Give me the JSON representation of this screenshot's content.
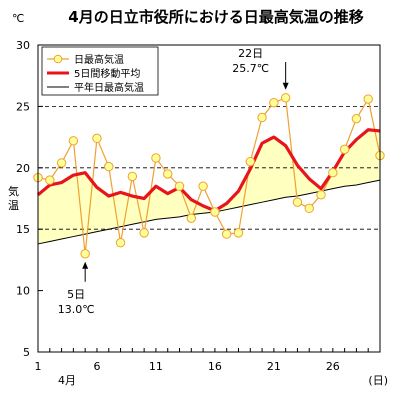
{
  "chart_data": {
    "type": "line",
    "title": "4月の日立市役所における日最高気温の推移",
    "unit_label": "℃",
    "ylabel": "気温",
    "x_unit": "(日)",
    "month_label": "4月",
    "x": [
      1,
      2,
      3,
      4,
      5,
      6,
      7,
      8,
      9,
      10,
      11,
      12,
      13,
      14,
      15,
      16,
      17,
      18,
      19,
      20,
      21,
      22,
      23,
      24,
      25,
      26,
      27,
      28,
      29,
      30
    ],
    "xlim": [
      1,
      30
    ],
    "ylim": [
      5,
      30
    ],
    "x_ticks": [
      1,
      6,
      11,
      16,
      21,
      26
    ],
    "y_ticks": [
      5,
      10,
      15,
      20,
      25,
      30
    ],
    "dashed_grid_y": [
      15,
      20,
      25
    ],
    "legend_position": "top-left",
    "series": [
      {
        "name": "日最高気温",
        "color": "#f0a030",
        "marker_fill": "#ffff99",
        "values": [
          19.2,
          19.0,
          20.4,
          22.2,
          13.0,
          22.4,
          20.1,
          13.9,
          19.3,
          14.7,
          20.8,
          19.5,
          18.5,
          15.9,
          18.5,
          16.4,
          14.6,
          14.7,
          20.5,
          24.1,
          25.3,
          25.7,
          17.2,
          16.7,
          17.8,
          19.6,
          21.5,
          24.0,
          25.6,
          21.0
        ]
      },
      {
        "name": "5日間移動平均",
        "color": "#e8141c",
        "values": [
          17.8,
          18.6,
          18.8,
          19.4,
          19.6,
          18.4,
          17.7,
          18.0,
          17.7,
          17.5,
          18.5,
          17.9,
          18.4,
          17.4,
          16.9,
          16.5,
          17.1,
          18.1,
          19.9,
          22.0,
          22.5,
          21.8,
          20.2,
          19.1,
          18.3,
          19.7,
          21.3,
          22.3,
          23.1,
          23.0
        ]
      },
      {
        "name": "平年日最高気温",
        "color": "#000000",
        "values": [
          13.8,
          14.0,
          14.2,
          14.4,
          14.6,
          14.8,
          15.0,
          15.2,
          15.4,
          15.6,
          15.8,
          15.9,
          16.0,
          16.2,
          16.3,
          16.4,
          16.6,
          16.8,
          17.0,
          17.2,
          17.4,
          17.6,
          17.7,
          17.9,
          18.1,
          18.3,
          18.5,
          18.6,
          18.8,
          19.0
        ]
      }
    ],
    "fill_between": {
      "upper": "5日間移動平均",
      "lower": "平年日最高気温",
      "color": "#ffffc0"
    },
    "annotations": [
      {
        "day_line": "22日",
        "value_line": "25.7℃",
        "x": 22,
        "y": 25.7,
        "arrow": "down",
        "position": "above"
      },
      {
        "day_line": "5日",
        "value_line": "13.0℃",
        "x": 5,
        "y": 13.0,
        "arrow": "up",
        "position": "below"
      }
    ]
  }
}
